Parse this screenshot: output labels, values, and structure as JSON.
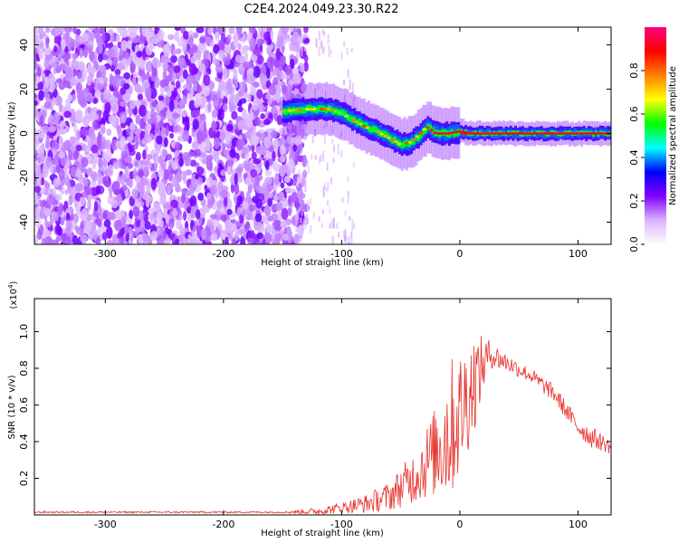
{
  "title": "C2E4.2024.049.23.30.R22",
  "chart_data": [
    {
      "type": "heatmap",
      "title": "",
      "xlabel": "Height of straight line (km)",
      "ylabel": "Frequency (Hz)",
      "xlim": [
        -360,
        128
      ],
      "ylim": [
        -50,
        48
      ],
      "x_ticks": [
        -300,
        -200,
        -100,
        0,
        100
      ],
      "y_ticks": [
        -40,
        -20,
        0,
        20,
        40
      ],
      "colorbar": {
        "label": "Normalized spectral amplitude",
        "range": [
          0.0,
          1.0
        ],
        "ticks": [
          0.0,
          0.2,
          0.4,
          0.6,
          0.8
        ],
        "colors": [
          "#ffffff",
          "#d9b3ff",
          "#8000ff",
          "#0000ff",
          "#00ffff",
          "#00ff00",
          "#ffff00",
          "#ff8000",
          "#ff0000",
          "#ff0080"
        ]
      },
      "noise_region": {
        "x_range": [
          -360,
          -140
        ],
        "freq_range": [
          -50,
          48
        ]
      },
      "ridge": {
        "x": [
          -150,
          -130,
          -110,
          -100,
          -90,
          -80,
          -70,
          -60,
          -50,
          -42,
          -35,
          -28,
          -20,
          -10,
          0,
          10,
          30,
          60,
          90,
          128
        ],
        "freq": [
          10,
          11,
          11,
          9,
          6,
          3,
          1,
          -2,
          -5,
          -4,
          -1,
          3,
          0,
          0,
          1,
          0,
          0,
          0,
          0,
          0
        ]
      }
    },
    {
      "type": "line",
      "title": "",
      "xlabel": "Height of straight line (km)",
      "ylabel": "SNR (10 * v/v)",
      "y_multiplier": "(x10",
      "y_multiplier_exp": "4",
      "y_multiplier_close": ")",
      "xlim": [
        -360,
        128
      ],
      "ylim": [
        0,
        1.18
      ],
      "x_ticks": [
        -300,
        -200,
        -100,
        0,
        100
      ],
      "y_ticks": [
        0.2,
        0.4,
        0.6,
        0.8,
        1.0
      ],
      "line_color": "#e8322c",
      "envelope": {
        "x": [
          -360,
          -150,
          -120,
          -100,
          -80,
          -60,
          -40,
          -20,
          -10,
          0,
          10,
          25,
          40,
          60,
          80,
          100,
          110,
          128
        ],
        "base": [
          0.015,
          0.015,
          0.02,
          0.04,
          0.06,
          0.1,
          0.2,
          0.35,
          0.45,
          0.55,
          0.7,
          0.88,
          0.83,
          0.76,
          0.66,
          0.48,
          0.43,
          0.37
        ],
        "amp": [
          0.005,
          0.005,
          0.02,
          0.03,
          0.05,
          0.08,
          0.14,
          0.25,
          0.4,
          0.35,
          0.3,
          0.08,
          0.05,
          0.04,
          0.05,
          0.05,
          0.06,
          0.04
        ]
      }
    }
  ]
}
